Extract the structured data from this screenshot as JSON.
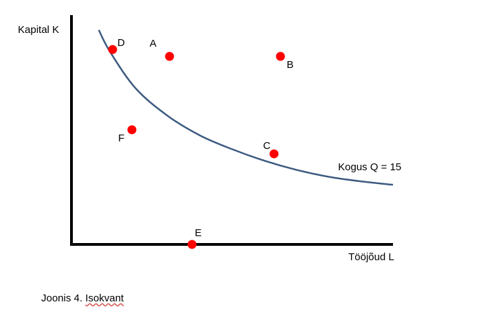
{
  "chart_data": {
    "type": "scatter",
    "ylabel": "Kapital K",
    "xlabel": "Tööjõud L",
    "xlim": [
      0,
      10
    ],
    "ylim": [
      0,
      10
    ],
    "grid": false,
    "curve": {
      "label": "Kogus Q = 15",
      "color": "#3d5a80",
      "points": [
        [
          0.85,
          9.35
        ],
        [
          1.2,
          8.4
        ],
        [
          2,
          6.8
        ],
        [
          3,
          5.6
        ],
        [
          4,
          4.75
        ],
        [
          5,
          4.15
        ],
        [
          6,
          3.65
        ],
        [
          7,
          3.25
        ],
        [
          8,
          2.95
        ],
        [
          9,
          2.75
        ],
        [
          10,
          2.6
        ]
      ]
    },
    "points": [
      {
        "label": "A",
        "x": 3.05,
        "y": 8.2
      },
      {
        "label": "B",
        "x": 6.5,
        "y": 8.2
      },
      {
        "label": "C",
        "x": 6.3,
        "y": 3.95
      },
      {
        "label": "D",
        "x": 1.28,
        "y": 8.5
      },
      {
        "label": "E",
        "x": 3.75,
        "y": 0
      },
      {
        "label": "F",
        "x": 1.88,
        "y": 5.0
      }
    ],
    "point_color": "#ff0000"
  },
  "caption": {
    "prefix": "Joonis 4. ",
    "word": "Isokvant"
  }
}
